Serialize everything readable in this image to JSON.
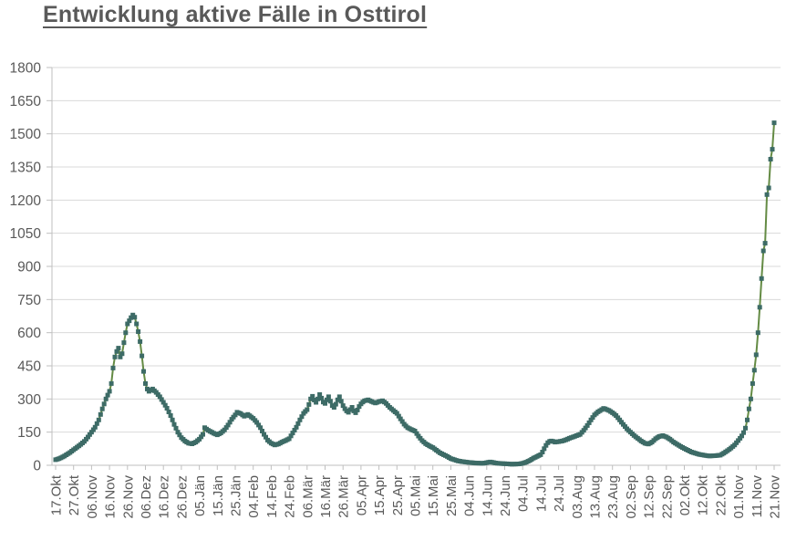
{
  "chart_data": {
    "type": "line",
    "title": "Entwicklung aktive Fälle in Osttirol",
    "xlabel": "",
    "ylabel": "",
    "ylim": [
      0,
      1800
    ],
    "yticks": [
      0,
      150,
      300,
      450,
      600,
      750,
      900,
      1050,
      1200,
      1350,
      1500,
      1650,
      1800
    ],
    "grid": "horizontal",
    "legend": "none",
    "marker": "square",
    "x_days_per_tick": 10,
    "xtick_labels": [
      "17.Okt",
      "27.Okt",
      "06.Nov",
      "16.Nov",
      "26.Nov",
      "06.Dez",
      "16.Dez",
      "26.Dez",
      "05.Jän",
      "15.Jän",
      "25.Jän",
      "04.Feb",
      "14.Feb",
      "24.Feb",
      "06.Mär",
      "16.Mär",
      "26.Mär",
      "05.Apr",
      "15.Apr",
      "25.Apr",
      "05.Mai",
      "15.Mai",
      "25.Mai",
      "04.Jun",
      "14.Jun",
      "24.Jun",
      "04.Jul",
      "14.Jul",
      "24.Jul",
      "03.Aug",
      "13.Aug",
      "23.Aug",
      "02.Sep",
      "12.Sep",
      "22.Sep",
      "02.Okt",
      "12.Okt",
      "22.Okt",
      "01.Nov",
      "11.Nov",
      "21.Nov"
    ],
    "series_points": [
      [
        0,
        25
      ],
      [
        2,
        30
      ],
      [
        5,
        42
      ],
      [
        8,
        58
      ],
      [
        10,
        70
      ],
      [
        13,
        88
      ],
      [
        16,
        108
      ],
      [
        18,
        128
      ],
      [
        20,
        150
      ],
      [
        22,
        172
      ],
      [
        24,
        205
      ],
      [
        26,
        255
      ],
      [
        28,
        300
      ],
      [
        30,
        335
      ],
      [
        31,
        370
      ],
      [
        32,
        440
      ],
      [
        33,
        490
      ],
      [
        34,
        515
      ],
      [
        35,
        530
      ],
      [
        36,
        490
      ],
      [
        37,
        505
      ],
      [
        38,
        555
      ],
      [
        39,
        600
      ],
      [
        40,
        640
      ],
      [
        42,
        668
      ],
      [
        43,
        680
      ],
      [
        44,
        670
      ],
      [
        45,
        640
      ],
      [
        46,
        605
      ],
      [
        47,
        560
      ],
      [
        48,
        495
      ],
      [
        49,
        425
      ],
      [
        50,
        370
      ],
      [
        51,
        345
      ],
      [
        52,
        335
      ],
      [
        54,
        345
      ],
      [
        56,
        330
      ],
      [
        58,
        310
      ],
      [
        60,
        285
      ],
      [
        62,
        258
      ],
      [
        64,
        225
      ],
      [
        66,
        185
      ],
      [
        68,
        150
      ],
      [
        70,
        125
      ],
      [
        72,
        110
      ],
      [
        74,
        100
      ],
      [
        76,
        97
      ],
      [
        78,
        105
      ],
      [
        80,
        118
      ],
      [
        82,
        140
      ],
      [
        83,
        170
      ],
      [
        85,
        158
      ],
      [
        88,
        145
      ],
      [
        90,
        138
      ],
      [
        92,
        146
      ],
      [
        94,
        160
      ],
      [
        96,
        182
      ],
      [
        98,
        208
      ],
      [
        100,
        228
      ],
      [
        101,
        240
      ],
      [
        103,
        234
      ],
      [
        105,
        222
      ],
      [
        107,
        230
      ],
      [
        109,
        218
      ],
      [
        110,
        212
      ],
      [
        112,
        194
      ],
      [
        114,
        170
      ],
      [
        116,
        140
      ],
      [
        118,
        114
      ],
      [
        120,
        100
      ],
      [
        122,
        92
      ],
      [
        124,
        96
      ],
      [
        126,
        105
      ],
      [
        128,
        112
      ],
      [
        130,
        120
      ],
      [
        132,
        146
      ],
      [
        134,
        172
      ],
      [
        136,
        205
      ],
      [
        138,
        235
      ],
      [
        140,
        252
      ],
      [
        141,
        275
      ],
      [
        142,
        300
      ],
      [
        143,
        312
      ],
      [
        144,
        295
      ],
      [
        145,
        285
      ],
      [
        146,
        300
      ],
      [
        147,
        320
      ],
      [
        148,
        304
      ],
      [
        149,
        286
      ],
      [
        150,
        280
      ],
      [
        151,
        296
      ],
      [
        152,
        310
      ],
      [
        153,
        290
      ],
      [
        154,
        270
      ],
      [
        155,
        262
      ],
      [
        156,
        276
      ],
      [
        157,
        296
      ],
      [
        158,
        310
      ],
      [
        159,
        290
      ],
      [
        160,
        270
      ],
      [
        161,
        256
      ],
      [
        162,
        246
      ],
      [
        163,
        240
      ],
      [
        164,
        252
      ],
      [
        165,
        262
      ],
      [
        166,
        246
      ],
      [
        167,
        238
      ],
      [
        168,
        250
      ],
      [
        169,
        266
      ],
      [
        170,
        278
      ],
      [
        171,
        286
      ],
      [
        172,
        292
      ],
      [
        174,
        296
      ],
      [
        176,
        288
      ],
      [
        178,
        282
      ],
      [
        180,
        288
      ],
      [
        182,
        292
      ],
      [
        184,
        280
      ],
      [
        186,
        262
      ],
      [
        188,
        248
      ],
      [
        190,
        235
      ],
      [
        192,
        210
      ],
      [
        194,
        186
      ],
      [
        196,
        170
      ],
      [
        198,
        162
      ],
      [
        200,
        155
      ],
      [
        202,
        132
      ],
      [
        204,
        112
      ],
      [
        206,
        98
      ],
      [
        208,
        88
      ],
      [
        210,
        80
      ],
      [
        212,
        68
      ],
      [
        214,
        56
      ],
      [
        216,
        48
      ],
      [
        218,
        40
      ],
      [
        220,
        30
      ],
      [
        222,
        25
      ],
      [
        224,
        20
      ],
      [
        226,
        17
      ],
      [
        228,
        15
      ],
      [
        230,
        13
      ],
      [
        234,
        10
      ],
      [
        238,
        9
      ],
      [
        240,
        12
      ],
      [
        242,
        15
      ],
      [
        244,
        12
      ],
      [
        246,
        9
      ],
      [
        248,
        8
      ],
      [
        250,
        7
      ],
      [
        254,
        5
      ],
      [
        258,
        6
      ],
      [
        260,
        9
      ],
      [
        262,
        14
      ],
      [
        264,
        22
      ],
      [
        266,
        32
      ],
      [
        268,
        40
      ],
      [
        270,
        48
      ],
      [
        271,
        60
      ],
      [
        272,
        75
      ],
      [
        273,
        90
      ],
      [
        274,
        102
      ],
      [
        275,
        108
      ],
      [
        276,
        110
      ],
      [
        277,
        108
      ],
      [
        278,
        105
      ],
      [
        280,
        107
      ],
      [
        282,
        110
      ],
      [
        284,
        115
      ],
      [
        286,
        122
      ],
      [
        288,
        128
      ],
      [
        290,
        134
      ],
      [
        292,
        140
      ],
      [
        294,
        158
      ],
      [
        296,
        180
      ],
      [
        298,
        205
      ],
      [
        300,
        228
      ],
      [
        302,
        242
      ],
      [
        304,
        252
      ],
      [
        305,
        257
      ],
      [
        306,
        255
      ],
      [
        308,
        248
      ],
      [
        310,
        238
      ],
      [
        312,
        225
      ],
      [
        314,
        205
      ],
      [
        316,
        185
      ],
      [
        318,
        165
      ],
      [
        320,
        150
      ],
      [
        322,
        135
      ],
      [
        324,
        122
      ],
      [
        326,
        110
      ],
      [
        328,
        100
      ],
      [
        330,
        96
      ],
      [
        332,
        105
      ],
      [
        334,
        120
      ],
      [
        336,
        130
      ],
      [
        338,
        134
      ],
      [
        340,
        128
      ],
      [
        342,
        118
      ],
      [
        344,
        105
      ],
      [
        346,
        95
      ],
      [
        348,
        85
      ],
      [
        350,
        76
      ],
      [
        352,
        68
      ],
      [
        354,
        60
      ],
      [
        356,
        55
      ],
      [
        358,
        50
      ],
      [
        360,
        47
      ],
      [
        362,
        44
      ],
      [
        364,
        42
      ],
      [
        366,
        43
      ],
      [
        368,
        44
      ],
      [
        370,
        46
      ],
      [
        372,
        55
      ],
      [
        374,
        66
      ],
      [
        376,
        78
      ],
      [
        378,
        92
      ],
      [
        380,
        112
      ],
      [
        381,
        122
      ],
      [
        382,
        133
      ],
      [
        383,
        148
      ],
      [
        384,
        168
      ],
      [
        385,
        205
      ],
      [
        386,
        255
      ],
      [
        387,
        300
      ],
      [
        388,
        370
      ],
      [
        389,
        430
      ],
      [
        390,
        500
      ],
      [
        391,
        600
      ],
      [
        392,
        715
      ],
      [
        393,
        845
      ],
      [
        394,
        970
      ],
      [
        395,
        1005
      ],
      [
        396,
        1225
      ],
      [
        397,
        1255
      ],
      [
        398,
        1385
      ],
      [
        399,
        1430
      ],
      [
        400,
        1550
      ]
    ],
    "style": {
      "line_color": "#648b44",
      "marker_color": "#3d6b66",
      "grid_color": "#d9d9d9",
      "axis_color": "#bfbfbf",
      "text_color": "#595959",
      "title_color": "#595959",
      "background": "#ffffff"
    }
  }
}
